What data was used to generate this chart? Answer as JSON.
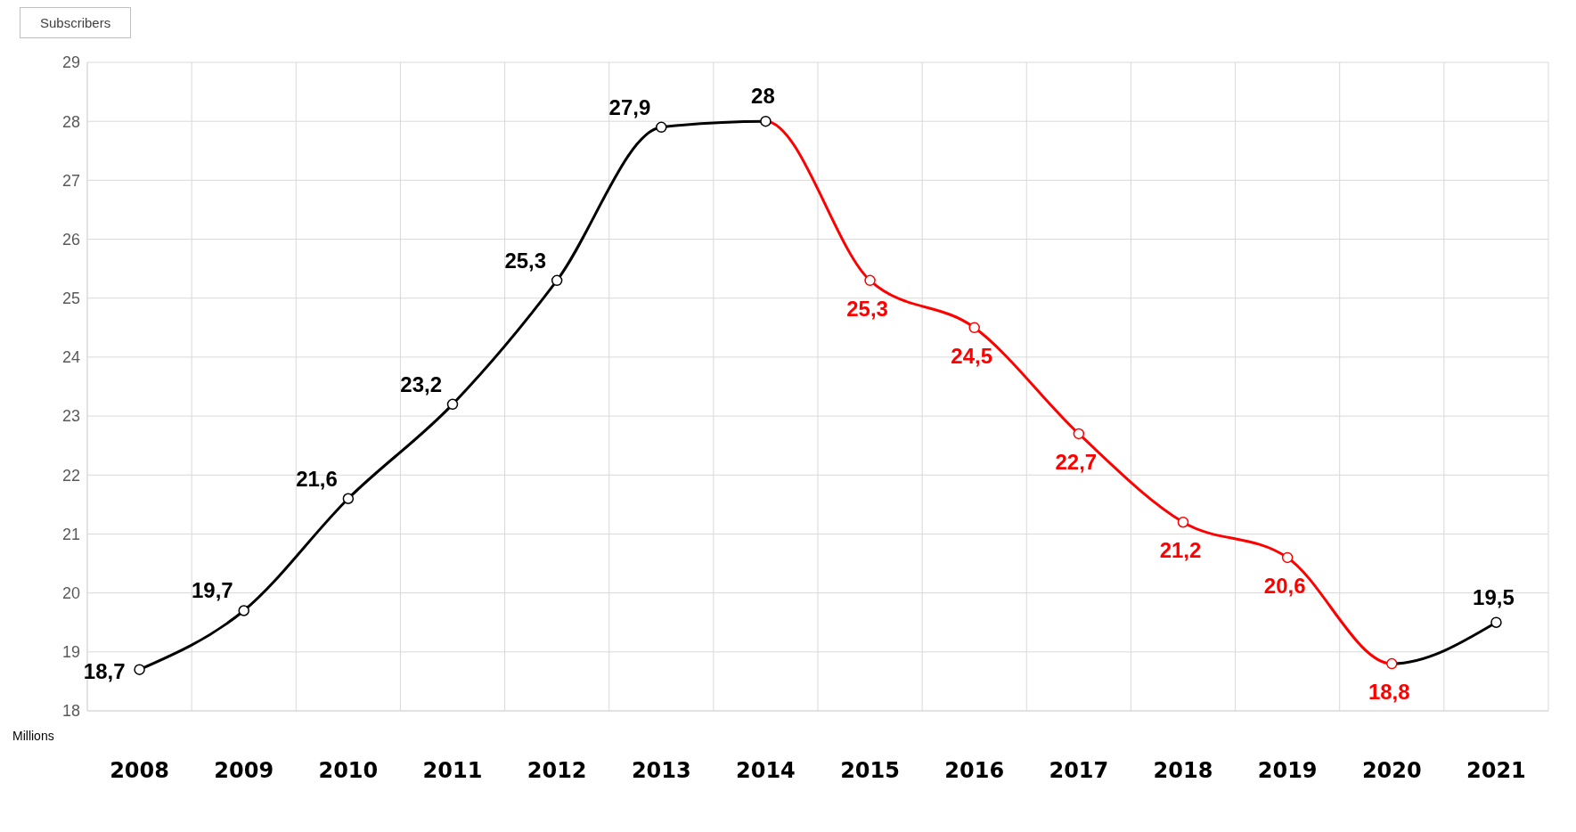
{
  "chart_data": {
    "type": "line",
    "title": "Subscribers",
    "annotations": [
      "Millions"
    ],
    "categories": [
      "2008",
      "2009",
      "2010",
      "2011",
      "2012",
      "2013",
      "2014",
      "2015",
      "2016",
      "2017",
      "2018",
      "2019",
      "2020",
      "2021"
    ],
    "series": [
      {
        "values": [
          18.7,
          19.7,
          21.6,
          23.2,
          25.3,
          27.9,
          28,
          25.3,
          24.5,
          22.7,
          21.2,
          20.6,
          18.8,
          19.5
        ],
        "colors": [
          "#000000",
          "#000000",
          "#000000",
          "#000000",
          "#000000",
          "#000000",
          "#000000",
          "#ff0000",
          "#ff0000",
          "#ff0000",
          "#ff0000",
          "#ff0000",
          "#ff0000",
          "#000000"
        ],
        "value_labels": [
          "18,7",
          "19,7",
          "21,6",
          "23,2",
          "25,3",
          "27,9",
          "28",
          "25,3",
          "24,5",
          "22,7",
          "21,2",
          "20,6",
          "18,8",
          "19,5"
        ]
      }
    ],
    "ylim": [
      18,
      29
    ],
    "yticks": [
      18,
      19,
      20,
      21,
      22,
      23,
      24,
      25,
      26,
      27,
      28,
      29
    ],
    "grid": true,
    "marker": "circle",
    "line_style": "solid"
  }
}
